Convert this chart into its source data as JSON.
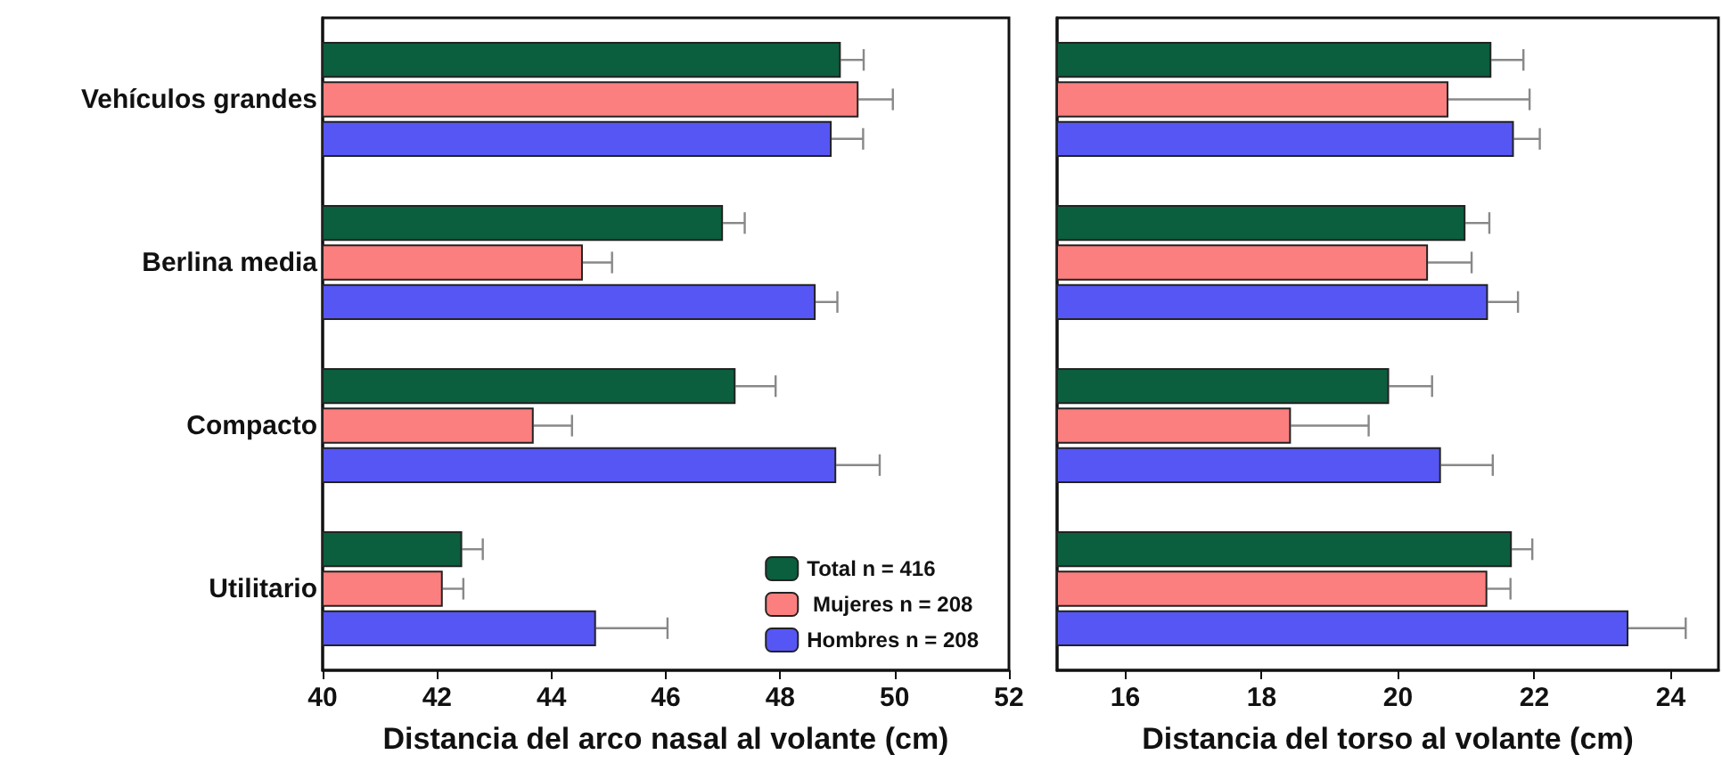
{
  "chart_data": [
    {
      "type": "bar",
      "orientation": "horizontal",
      "xlabel": "Distancia del arco nasal al volante (cm)",
      "categories": [
        "Vehículos grandes",
        "Berlina media",
        "Compacto",
        "Utilitario"
      ],
      "xlim": [
        40,
        52
      ],
      "xticks": [
        40,
        42,
        44,
        46,
        48,
        50,
        52
      ],
      "legend": "bottom right",
      "series": [
        {
          "name": "Total n = 416",
          "color": "#0b5e3e",
          "values": [
            49.06,
            47.0,
            47.22,
            42.44
          ],
          "errors": [
            [
              49.06,
              49.46
            ],
            [
              47.0,
              47.38
            ],
            [
              47.22,
              47.92
            ],
            [
              42.44,
              42.8
            ]
          ]
        },
        {
          "name": " Mujeres n = 208",
          "color": "#fb7f7f",
          "values": [
            49.37,
            44.55,
            43.69,
            42.1
          ],
          "errors": [
            [
              49.37,
              49.97
            ],
            [
              44.55,
              45.06
            ],
            [
              43.69,
              44.36
            ],
            [
              42.1,
              42.46
            ]
          ]
        },
        {
          "name": "Hombres n = 208",
          "color": "#5656f5",
          "values": [
            48.9,
            48.62,
            48.98,
            44.78
          ],
          "errors": [
            [
              48.9,
              49.45
            ],
            [
              48.62,
              49.0
            ],
            [
              48.98,
              49.74
            ],
            [
              44.78,
              46.03
            ]
          ]
        }
      ]
    },
    {
      "type": "bar",
      "orientation": "horizontal",
      "xlabel": "Distancia del torso al volante (cm)",
      "categories": [
        null,
        null,
        null,
        null
      ],
      "xlim": [
        15,
        24.7
      ],
      "xticks": [
        16,
        18,
        20,
        22,
        24
      ],
      "series": [
        {
          "color": "#0b5e3e",
          "values": [
            21.37,
            20.99,
            19.87,
            21.67
          ],
          "errors": [
            [
              21.37,
              21.84
            ],
            [
              20.99,
              21.34
            ],
            [
              19.87,
              20.5
            ],
            [
              21.67,
              21.97
            ]
          ]
        },
        {
          "color": "#fb7f7f",
          "values": [
            20.74,
            20.44,
            18.43,
            21.31
          ],
          "errors": [
            [
              20.74,
              21.93
            ],
            [
              20.44,
              21.08
            ],
            [
              18.43,
              19.57
            ],
            [
              21.31,
              21.65
            ]
          ]
        },
        {
          "color": "#5656f5",
          "values": [
            21.7,
            21.32,
            20.63,
            23.38
          ],
          "errors": [
            [
              21.7,
              22.08
            ],
            [
              21.32,
              21.76
            ],
            [
              20.63,
              21.39
            ],
            [
              23.38,
              24.22
            ]
          ]
        }
      ]
    }
  ]
}
